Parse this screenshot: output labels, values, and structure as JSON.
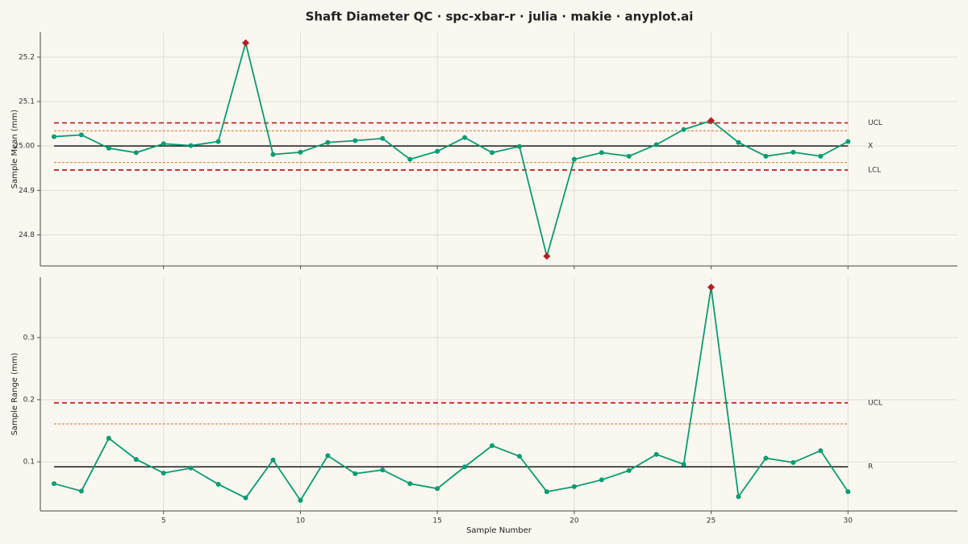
{
  "title": "Shaft Diameter QC · spc-xbar-r · julia · makie · anyplot.ai",
  "chart_data": [
    {
      "type": "line",
      "ylabel": "Sample Mean (mm)",
      "show_xtick_labels": false,
      "x": [
        1,
        2,
        3,
        4,
        5,
        6,
        7,
        8,
        9,
        10,
        11,
        12,
        13,
        14,
        15,
        16,
        17,
        18,
        19,
        20,
        21,
        22,
        23,
        24,
        25,
        26,
        27,
        28,
        29,
        30
      ],
      "series": [
        {
          "color": "#0a9b72",
          "out_color": "#b22222",
          "values": [
            25.021,
            25.025,
            24.995,
            24.985,
            25.005,
            25.001,
            25.01,
            25.232,
            24.981,
            24.986,
            25.008,
            25.012,
            25.017,
            24.97,
            24.988,
            25.019,
            24.985,
            24.999,
            24.752,
            24.97,
            24.985,
            24.977,
            25.003,
            25.037,
            25.057,
            25.008,
            24.977,
            24.986,
            24.977,
            25.01
          ]
        }
      ],
      "control_lines": [
        {
          "label": "UCL",
          "value": 25.052,
          "color": "#c0282d",
          "style": "dashed",
          "limit": "upper"
        },
        {
          "value": 25.034,
          "color": "#d98b4a",
          "style": "dotted"
        },
        {
          "label": "X",
          "value": 25.0,
          "color": "#1a1a1a",
          "style": "solid"
        },
        {
          "value": 24.963,
          "color": "#d98b4a",
          "style": "dotted"
        },
        {
          "label": "LCL",
          "value": 24.946,
          "color": "#c0282d",
          "style": "dashed",
          "limit": "lower"
        }
      ],
      "xlim": [
        0.5,
        34
      ],
      "xticks": [
        5,
        10,
        15,
        20,
        25,
        30
      ],
      "ylim": [
        24.73,
        25.256
      ],
      "yticks": [
        24.8,
        24.9,
        {
          "value": 25.0,
          "label": "25.00"
        },
        25.1,
        25.2
      ],
      "grid": true
    },
    {
      "type": "line",
      "ylabel": "Sample Range (mm)",
      "xlabel": "Sample Number",
      "show_xtick_labels": true,
      "x": [
        1,
        2,
        3,
        4,
        5,
        6,
        7,
        8,
        9,
        10,
        11,
        12,
        13,
        14,
        15,
        16,
        17,
        18,
        19,
        20,
        21,
        22,
        23,
        24,
        25,
        26,
        27,
        28,
        29,
        30
      ],
      "series": [
        {
          "color": "#0a9b72",
          "out_color": "#b22222",
          "values": [
            0.065,
            0.053,
            0.138,
            0.104,
            0.082,
            0.09,
            0.064,
            0.042,
            0.103,
            0.038,
            0.11,
            0.081,
            0.087,
            0.065,
            0.057,
            0.092,
            0.126,
            0.109,
            0.052,
            0.06,
            0.071,
            0.086,
            0.112,
            0.096,
            0.381,
            0.044,
            0.106,
            0.099,
            0.118,
            0.052
          ]
        }
      ],
      "control_lines": [
        {
          "label": "UCL",
          "value": 0.195,
          "color": "#c0282d",
          "style": "dashed",
          "limit": "upper"
        },
        {
          "value": 0.161,
          "color": "#d98b4a",
          "style": "dotted"
        },
        {
          "label": "R",
          "value": 0.092,
          "color": "#1a1a1a",
          "style": "solid"
        }
      ],
      "xlim": [
        0.5,
        34
      ],
      "xticks": [
        5,
        10,
        15,
        20,
        25,
        30
      ],
      "ylim": [
        0.021,
        0.397
      ],
      "yticks": [
        0.1,
        0.2,
        0.3
      ],
      "grid": true
    }
  ]
}
